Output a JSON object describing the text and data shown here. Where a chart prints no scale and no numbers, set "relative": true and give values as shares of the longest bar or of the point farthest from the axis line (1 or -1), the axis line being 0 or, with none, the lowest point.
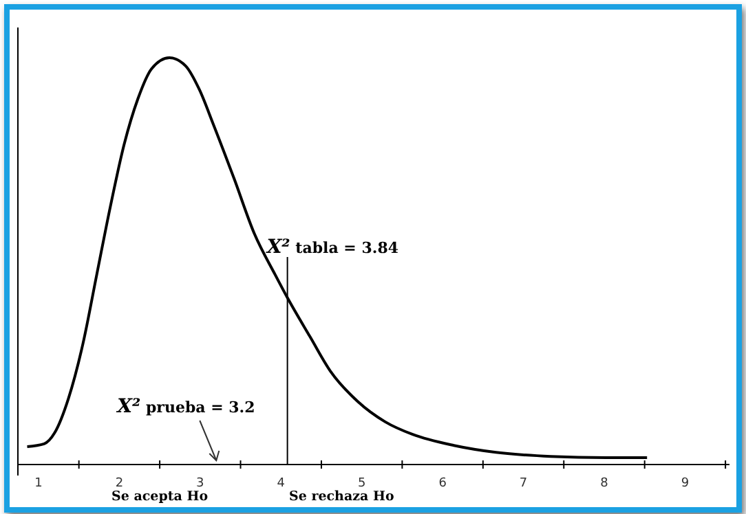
{
  "chart_data": {
    "type": "line",
    "relative": true,
    "color": "#000000",
    "marker": "none",
    "line_style": "solid",
    "x": [
      0.86,
      1.07,
      1.2,
      1.37,
      1.55,
      1.72,
      1.89,
      2.06,
      2.23,
      2.4,
      2.62,
      2.82,
      2.99,
      3.16,
      3.42,
      3.67,
      3.93,
      4.08,
      4.36,
      4.61,
      4.95,
      5.29,
      5.63,
      6.14,
      6.66,
      7.34,
      8.02,
      8.53
    ],
    "values": [
      0.044,
      0.051,
      0.078,
      0.162,
      0.297,
      0.466,
      0.635,
      0.787,
      0.899,
      0.973,
      1,
      0.98,
      0.922,
      0.838,
      0.703,
      0.568,
      0.466,
      0.41,
      0.314,
      0.23,
      0.155,
      0.105,
      0.074,
      0.047,
      0.03,
      0.02,
      0.017,
      0.017
    ],
    "xlim": [
      0.745,
      9.55
    ],
    "xticks": [
      1,
      2,
      3,
      4,
      5,
      6,
      7,
      8,
      9,
      {
        "value": 1.5,
        "label": null
      },
      {
        "value": 2.5,
        "label": null
      },
      {
        "value": 3.5,
        "label": null
      },
      {
        "value": 4.5,
        "label": null
      },
      {
        "value": 5.5,
        "label": null
      },
      {
        "value": 6.5,
        "label": null
      },
      {
        "value": 7.5,
        "label": null
      },
      {
        "value": 8.5,
        "label": null
      },
      {
        "value": 9.5,
        "label": null
      }
    ],
    "ref_lines": [
      {
        "axis": "x",
        "value": 4.08,
        "color": "#000000"
      }
    ],
    "annotations": [
      {
        "text": "X² tabla = 3.84",
        "x": 4.08,
        "y": 0.51
      },
      "X² prueba = 3.2",
      "Se acepta Ho",
      "Se rechaza Ho"
    ]
  }
}
